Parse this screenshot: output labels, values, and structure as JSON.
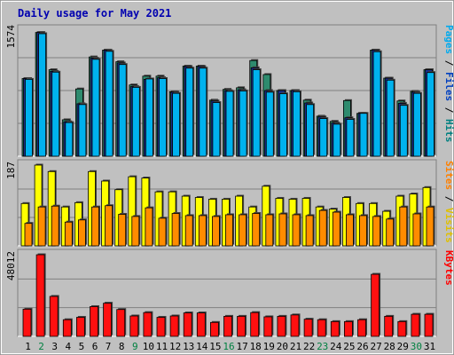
{
  "chart_data": {
    "type": "bar",
    "title": "Daily usage for May 2021",
    "categories": [
      "1",
      "2",
      "3",
      "4",
      "5",
      "6",
      "7",
      "8",
      "9",
      "10",
      "11",
      "12",
      "13",
      "14",
      "15",
      "16",
      "17",
      "18",
      "19",
      "20",
      "21",
      "22",
      "23",
      "24",
      "25",
      "26",
      "27",
      "28",
      "29",
      "30",
      "31"
    ],
    "weekend_days": [
      "2",
      "9",
      "16",
      "23",
      "30"
    ],
    "panels": [
      {
        "name": "top",
        "ymax_label": "1574",
        "ylim": [
          0,
          1574
        ],
        "legend": [
          "Pages",
          "Files",
          "Hits"
        ],
        "legend_colors": [
          "#00aaee",
          "#0040c0",
          "#008080"
        ],
        "series": [
          {
            "name": "Hits",
            "color": "#2e8b6e",
            "values": [
              970,
              1545,
              1080,
              455,
              840,
              1240,
              1325,
              1180,
              890,
              1000,
              1000,
              805,
              1125,
              1125,
              700,
              835,
              855,
              1195,
              1020,
              820,
              820,
              700,
              500,
              435,
              695,
              535,
              1325,
              975,
              690,
              810,
              1080
            ]
          },
          {
            "name": "Files",
            "color": "#1a2e8a",
            "values": [
              970,
              1545,
              1060,
              430,
              655,
              1225,
              1325,
              1165,
              870,
              960,
              980,
              800,
              1120,
              1120,
              690,
              820,
              830,
              1105,
              820,
              820,
              820,
              665,
              490,
              415,
              480,
              535,
              1325,
              975,
              660,
              800,
              1080
            ]
          },
          {
            "name": "Pages",
            "color": "#00b2ee",
            "values": [
              960,
              1530,
              1050,
              420,
              645,
              1210,
              1310,
              1145,
              860,
              965,
              970,
              785,
              1100,
              1100,
              670,
              810,
              815,
              1080,
              800,
              780,
              805,
              645,
              470,
              400,
              460,
              535,
              1305,
              950,
              635,
              785,
              1045
            ]
          }
        ]
      },
      {
        "name": "middle",
        "ymax_label": "187",
        "ylim": [
          0,
          187
        ],
        "legend": [
          "Sites",
          "Visits"
        ],
        "legend_colors": [
          "#ff8000",
          "#e0c000"
        ],
        "series": [
          {
            "name": "Visits",
            "color": "#ffff00",
            "values": [
              98,
              187,
              172,
              90,
              100,
              172,
              150,
              130,
              160,
              157,
              125,
              125,
              115,
              112,
              108,
              108,
              115,
              90,
              138,
              110,
              108,
              110,
              90,
              85,
              112,
              98,
              98,
              80,
              115,
              120,
              135
            ]
          },
          {
            "name": "Sites",
            "color": "#ff8c00",
            "values": [
              52,
              90,
              92,
              55,
              60,
              90,
              93,
              73,
              68,
              88,
              64,
              75,
              70,
              70,
              68,
              72,
              72,
              75,
              72,
              74,
              72,
              70,
              82,
              78,
              72,
              70,
              68,
              62,
              90,
              74,
              90
            ]
          }
        ]
      },
      {
        "name": "bottom",
        "ymax_label": "48012",
        "ylim": [
          0,
          48012
        ],
        "legend": [
          "KBytes"
        ],
        "legend_colors": [
          "#ff0000"
        ],
        "series": [
          {
            "name": "KBytes",
            "color": "#ff1010",
            "values": [
              16000,
              48000,
              23500,
              9800,
              11200,
              17500,
              19500,
              15800,
              12000,
              14000,
              11200,
              12000,
              13800,
              13800,
              8200,
              11800,
              11800,
              14000,
              11500,
              11800,
              12600,
              10100,
              9800,
              8700,
              8700,
              9800,
              36500,
              11800,
              8700,
              13000,
              13000
            ]
          }
        ]
      }
    ]
  }
}
